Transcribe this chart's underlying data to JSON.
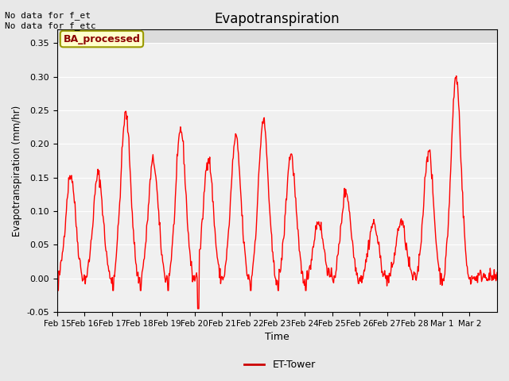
{
  "title": "Evapotranspiration",
  "ylabel": "Evapotranspiration (mm/hr)",
  "xlabel": "Time",
  "ylim": [
    -0.05,
    0.37
  ],
  "yticks": [
    -0.05,
    0.0,
    0.05,
    0.1,
    0.15,
    0.2,
    0.25,
    0.3,
    0.35
  ],
  "xtick_labels": [
    "Feb 15",
    "Feb 16",
    "Feb 17",
    "Feb 18",
    "Feb 19",
    "Feb 20",
    "Feb 21",
    "Feb 22",
    "Feb 23",
    "Feb 24",
    "Feb 25",
    "Feb 26",
    "Feb 27",
    "Feb 28",
    "Mar 1",
    "Mar 2"
  ],
  "xtick_positions": [
    0,
    1,
    2,
    3,
    4,
    5,
    6,
    7,
    8,
    9,
    10,
    11,
    12,
    13,
    14,
    15
  ],
  "line_color": "#FF0000",
  "line_width": 1.0,
  "bg_color": "#E8E8E8",
  "plot_bg_color": "#F0F0F0",
  "legend_label": "ET-Tower",
  "legend_line_color": "#CC0000",
  "annotation_text": "No data for f_et\nNo data for f_etc",
  "box_label": "BA_processed",
  "box_facecolor": "#FFFFCC",
  "box_edgecolor": "#999900"
}
